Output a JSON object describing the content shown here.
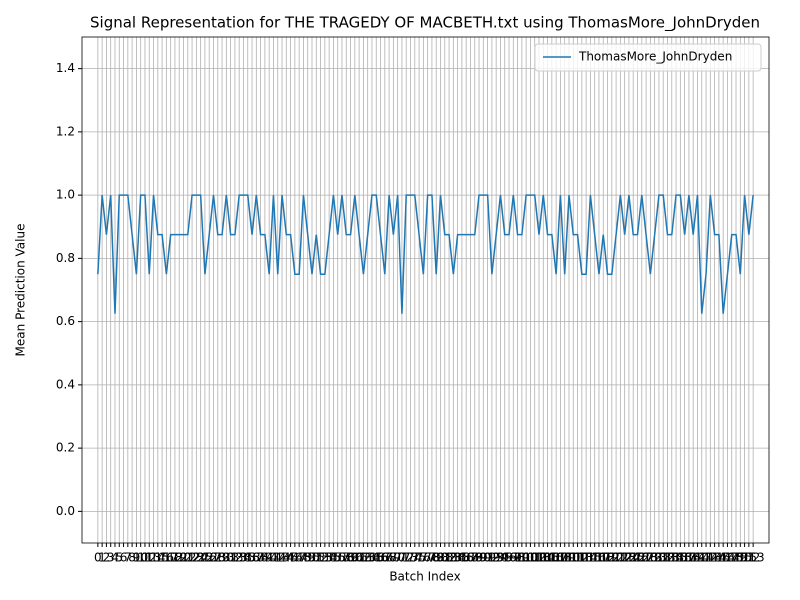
{
  "chart_data": {
    "type": "line",
    "title": "Signal Representation for THE TRAGEDY OF MACBETH.txt using ThomasMore_JohnDryden",
    "x_label": "Batch Index",
    "y_label": "Mean Prediction Value",
    "x": [
      0,
      1,
      2,
      3,
      4,
      5,
      6,
      7,
      8,
      9,
      10,
      11,
      12,
      13,
      14,
      15,
      16,
      17,
      18,
      19,
      20,
      21,
      22,
      23,
      24,
      25,
      26,
      27,
      28,
      29,
      30,
      31,
      32,
      33,
      34,
      35,
      36,
      37,
      38,
      39,
      40,
      41,
      42,
      43,
      44,
      45,
      46,
      47,
      48,
      49,
      50,
      51,
      52,
      53,
      54,
      55,
      56,
      57,
      58,
      59,
      60,
      61,
      62,
      63,
      64,
      65,
      66,
      67,
      68,
      69,
      70,
      71,
      72,
      73,
      74,
      75,
      76,
      77,
      78,
      79,
      80,
      81,
      82,
      83,
      84,
      85,
      86,
      87,
      88,
      89,
      90,
      91,
      92,
      93,
      94,
      95,
      96,
      97,
      98,
      99,
      100,
      101,
      102,
      103,
      104,
      105,
      106,
      107,
      108,
      109,
      110,
      111,
      112,
      113,
      114,
      115,
      116,
      117,
      118,
      119,
      120,
      121,
      122,
      123,
      124,
      125,
      126,
      127,
      128,
      129,
      130,
      131,
      132,
      133,
      134,
      135,
      136,
      137,
      138,
      139,
      140,
      141,
      142,
      143,
      144,
      145,
      146,
      147,
      148,
      149,
      150,
      151,
      152,
      153
    ],
    "series": [
      {
        "name": "ThomasMore_JohnDryden",
        "color": "#1f77b4",
        "values": [
          0.75,
          1,
          0.875,
          1,
          0.625,
          1,
          1,
          1,
          0.875,
          0.75,
          1,
          1,
          0.75,
          1,
          0.875,
          0.875,
          0.75,
          0.875,
          0.875,
          0.875,
          0.875,
          0.875,
          1,
          1,
          1,
          0.75,
          0.875,
          1,
          0.875,
          0.875,
          1,
          0.875,
          0.875,
          1,
          1,
          1,
          0.875,
          1,
          0.875,
          0.875,
          0.75,
          1,
          0.75,
          1,
          0.875,
          0.875,
          0.75,
          0.75,
          1,
          0.875,
          0.75,
          0.875,
          0.75,
          0.75,
          0.875,
          1,
          0.875,
          1,
          0.875,
          0.875,
          1,
          0.875,
          0.75,
          0.875,
          1,
          1,
          0.875,
          0.75,
          1,
          0.875,
          1,
          0.625,
          1,
          1,
          1,
          0.875,
          0.75,
          1,
          1,
          0.75,
          1,
          0.875,
          0.875,
          0.75,
          0.875,
          0.875,
          0.875,
          0.875,
          0.875,
          1,
          1,
          1,
          0.75,
          0.875,
          1,
          0.875,
          0.875,
          1,
          0.875,
          0.875,
          1,
          1,
          1,
          0.875,
          1,
          0.875,
          0.875,
          0.75,
          1,
          0.75,
          1,
          0.875,
          0.875,
          0.75,
          0.75,
          1,
          0.875,
          0.75,
          0.875,
          0.75,
          0.75,
          0.875,
          1,
          0.875,
          1,
          0.875,
          0.875,
          1,
          0.875,
          0.75,
          0.875,
          1,
          1,
          0.875,
          0.875,
          1,
          1,
          0.875,
          1,
          0.875,
          1,
          0.625,
          0.75,
          1,
          0.875,
          0.875,
          0.625,
          0.75,
          0.875,
          0.875,
          0.75,
          1,
          0.875,
          1
        ]
      }
    ],
    "xlim": [
      -3.7,
      156.7
    ],
    "xticks": [
      0,
      1,
      2,
      3,
      4,
      5,
      6,
      7,
      8,
      9,
      10,
      11,
      12,
      13,
      14,
      15,
      16,
      17,
      18,
      19,
      20,
      21,
      22,
      23,
      24,
      25,
      26,
      27,
      28,
      29,
      30,
      31,
      32,
      33,
      34,
      35,
      36,
      37,
      38,
      39,
      40,
      41,
      42,
      43,
      44,
      45,
      46,
      47,
      48,
      49,
      50,
      51,
      52,
      53,
      54,
      55,
      56,
      57,
      58,
      59,
      60,
      61,
      62,
      63,
      64,
      65,
      66,
      67,
      68,
      69,
      70,
      71,
      72,
      73,
      74,
      75,
      76,
      77,
      78,
      79,
      80,
      81,
      82,
      83,
      84,
      85,
      86,
      87,
      88,
      89,
      90,
      91,
      92,
      93,
      94,
      95,
      96,
      97,
      98,
      99,
      100,
      101,
      102,
      103,
      104,
      105,
      106,
      107,
      108,
      109,
      110,
      111,
      112,
      113,
      114,
      115,
      116,
      117,
      118,
      119,
      120,
      121,
      122,
      123,
      124,
      125,
      126,
      127,
      128,
      129,
      130,
      131,
      132,
      133,
      134,
      135,
      136,
      137,
      138,
      139,
      140,
      141,
      142,
      143,
      144,
      145,
      146,
      147,
      148,
      149,
      150,
      151,
      152,
      153
    ],
    "ylim": [
      -0.1,
      1.5
    ],
    "yticks": [
      {
        "value": 0,
        "label": "0.0"
      },
      {
        "value": 0.2,
        "label": "0.2"
      },
      {
        "value": 0.4,
        "label": "0.4"
      },
      {
        "value": 0.6,
        "label": "0.6"
      },
      {
        "value": 0.8,
        "label": "0.8"
      },
      {
        "value": 1,
        "label": "1.0"
      },
      {
        "value": 1.2,
        "label": "1.2"
      },
      {
        "value": 1.4,
        "label": "1.4"
      }
    ],
    "grid": true,
    "legend": "upper right"
  }
}
